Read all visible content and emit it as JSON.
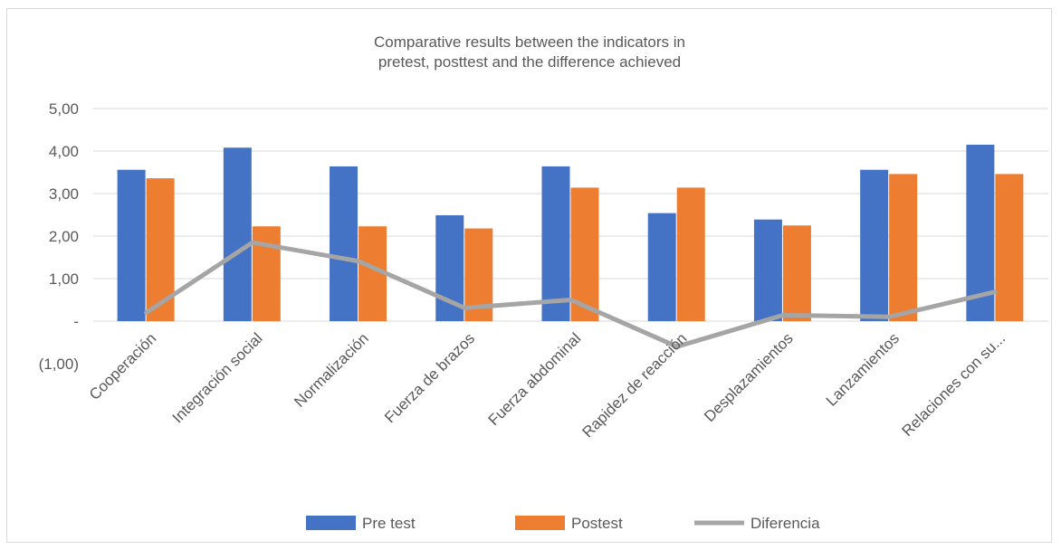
{
  "chart_data": {
    "type": "bar",
    "title": "Comparative results between the indicators in pretest, posttest and the difference achieved",
    "title_lines": [
      "Comparative results between the indicators in",
      "pretest, posttest and the difference achieved"
    ],
    "categories": [
      "Cooperación",
      "Integración social",
      "Normalización",
      "Fuerza de brazos",
      "Fuerza abdominal",
      "Rapidez  de reacción",
      "Desplazamientos",
      "Lanzamientos",
      "Relaciones con su..."
    ],
    "series": [
      {
        "name": "Pre test",
        "type": "bar",
        "color": "#4472c4",
        "values": [
          3.56,
          4.08,
          3.64,
          2.49,
          3.64,
          2.54,
          2.39,
          3.56,
          4.15
        ]
      },
      {
        "name": "Postest",
        "type": "bar",
        "color": "#ed7d31",
        "values": [
          3.36,
          2.23,
          2.23,
          2.18,
          3.14,
          3.14,
          2.25,
          3.46,
          3.46
        ]
      },
      {
        "name": "Diferencia",
        "type": "line",
        "color": "#a5a5a5",
        "values": [
          0.2,
          1.85,
          1.41,
          0.31,
          0.5,
          -0.6,
          0.14,
          0.1,
          0.69
        ]
      }
    ],
    "y_ticks": [
      {
        "value": 5,
        "label": "5,00"
      },
      {
        "value": 4,
        "label": "4,00"
      },
      {
        "value": 3,
        "label": "3,00"
      },
      {
        "value": 2,
        "label": "2,00"
      },
      {
        "value": 1,
        "label": "1,00"
      },
      {
        "value": 0,
        "label": "-"
      },
      {
        "value": -1,
        "label": "(1,00)"
      }
    ],
    "ylim": [
      -1,
      5
    ],
    "xlabel": "",
    "ylabel": "",
    "grid": true,
    "legend_position": "bottom"
  }
}
